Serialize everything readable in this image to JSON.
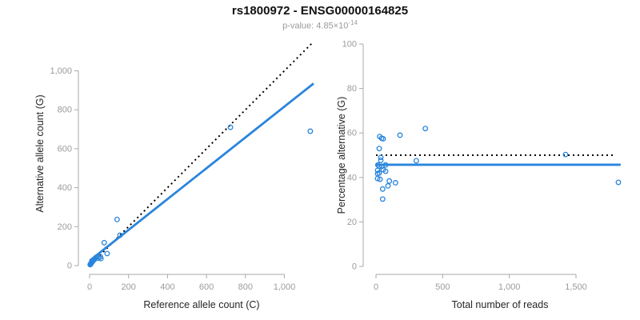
{
  "header": {
    "title": "rs1800972 - ENSG00000164825",
    "pvalue_prefix": "p-value: 4.85×10",
    "pvalue_exponent": "-14"
  },
  "colors": {
    "series_blue": "#2a85dc",
    "dotted_black": "#000000",
    "axis_line": "#a9a9a9",
    "tick_label": "#9b9b9b",
    "axis_title": "#262626",
    "title": "#111111",
    "subtitle": "#9b9b9b"
  },
  "chart_data": [
    {
      "id": "allele-counts",
      "type": "scatter",
      "title": "",
      "xlabel": "Reference allele count (C)",
      "ylabel": "Alternative allele count (G)",
      "xlim": [
        0,
        1150
      ],
      "ylim": [
        0,
        1150
      ],
      "grid": false,
      "legend": null,
      "xticks": {
        "values": [
          0,
          200,
          400,
          600,
          800,
          1000
        ],
        "labels": [
          "0",
          "200",
          "400",
          "600",
          "800",
          "1,000"
        ]
      },
      "yticks": {
        "values": [
          0,
          200,
          400,
          600,
          800,
          1000
        ],
        "labels": [
          "0",
          "200",
          "400",
          "600",
          "800",
          "1,000"
        ]
      },
      "points": [
        [
          3,
          5
        ],
        [
          5,
          8
        ],
        [
          7,
          10
        ],
        [
          8,
          13
        ],
        [
          10,
          15
        ],
        [
          12,
          17
        ],
        [
          13,
          20
        ],
        [
          15,
          22
        ],
        [
          17,
          24
        ],
        [
          19,
          27
        ],
        [
          21,
          29
        ],
        [
          23,
          31
        ],
        [
          25,
          33
        ],
        [
          27,
          35
        ],
        [
          33,
          42
        ],
        [
          46,
          38
        ],
        [
          55,
          46
        ],
        [
          58,
          36
        ],
        [
          90,
          62
        ],
        [
          75,
          118
        ],
        [
          141,
          237
        ],
        [
          156,
          156
        ],
        [
          723,
          710
        ],
        [
          1133,
          690
        ]
      ],
      "lines": [
        {
          "name": "identity-line",
          "style": "dotted",
          "x": [
            0,
            1140
          ],
          "y": [
            0,
            1140
          ]
        },
        {
          "name": "fit-line",
          "style": "solid",
          "x": [
            0,
            1150
          ],
          "y": [
            25,
            935
          ]
        }
      ]
    },
    {
      "id": "percentage-vs-reads",
      "type": "scatter",
      "title": "",
      "xlabel": "Total number of reads",
      "ylabel": "Percentage alternative (G)",
      "xlim": [
        0,
        1860
      ],
      "ylim": [
        0,
        100
      ],
      "grid": false,
      "legend": null,
      "xticks": {
        "values": [
          0,
          500,
          1000,
          1500
        ],
        "labels": [
          "0",
          "500",
          "1,000",
          "1,500"
        ]
      },
      "yticks": {
        "values": [
          0,
          20,
          40,
          60,
          80,
          100
        ],
        "labels": [
          "0",
          "20",
          "40",
          "60",
          "80",
          "100"
        ]
      },
      "points": [
        [
          24,
          53
        ],
        [
          28,
          58.4
        ],
        [
          42,
          57.6
        ],
        [
          54,
          57.4
        ],
        [
          180,
          59
        ],
        [
          370,
          62
        ],
        [
          36,
          49
        ],
        [
          302,
          47.5
        ],
        [
          36,
          47.7
        ],
        [
          14,
          45.6
        ],
        [
          24,
          45
        ],
        [
          44,
          45
        ],
        [
          72,
          45.6
        ],
        [
          12,
          43.2
        ],
        [
          54,
          43.5
        ],
        [
          72,
          42.8
        ],
        [
          12,
          41.7
        ],
        [
          24,
          42
        ],
        [
          12,
          39.5
        ],
        [
          30,
          39.2
        ],
        [
          100,
          38.4
        ],
        [
          146,
          37.6
        ],
        [
          90,
          36.2
        ],
        [
          50,
          34.8
        ],
        [
          50,
          30.3
        ],
        [
          1422,
          50.3
        ],
        [
          1818,
          37.8
        ]
      ],
      "lines": [
        {
          "name": "expected-50pct-line",
          "style": "dotted",
          "x": [
            0,
            1795
          ],
          "y": [
            50,
            50
          ]
        },
        {
          "name": "mean-percentage-line",
          "style": "solid",
          "x": [
            0,
            1835
          ],
          "y": [
            45.7,
            45.7
          ]
        }
      ]
    }
  ]
}
